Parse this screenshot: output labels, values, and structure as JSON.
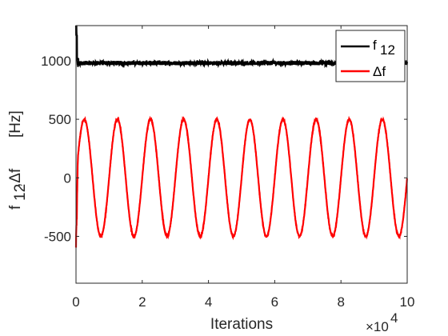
{
  "chart_data": {
    "type": "line",
    "xlabel": "Iterations",
    "ylabel_main": "f",
    "ylabel_sub": "12",
    "ylabel_rest": ",Δf",
    "ylabel_unit": "[Hz]",
    "xlim": [
      0,
      100000
    ],
    "ylim": [
      -900,
      1300
    ],
    "x_ticks": [
      0,
      20000,
      40000,
      60000,
      80000,
      100000
    ],
    "x_tick_labels": [
      "0",
      "2",
      "4",
      "6",
      "8",
      "10"
    ],
    "x_exponent_base": "×10",
    "x_exponent_power": "4",
    "y_ticks": [
      -500,
      0,
      500,
      1000
    ],
    "y_tick_labels": [
      "-500",
      "0",
      "500",
      "1000"
    ],
    "grid": false,
    "legend_position": "top-right",
    "series": [
      {
        "name": "f",
        "name_sub": "12",
        "color": "#000000",
        "description_values": {
          "steady_value": 980,
          "initial_spike": 1300,
          "noise_amplitude": 18
        }
      },
      {
        "name": "Δf",
        "color": "#ff0000",
        "description_values": {
          "amplitude": 500,
          "period_iterations": 10000,
          "first_peak_iteration": 2500,
          "initial_value": -600
        }
      }
    ]
  }
}
